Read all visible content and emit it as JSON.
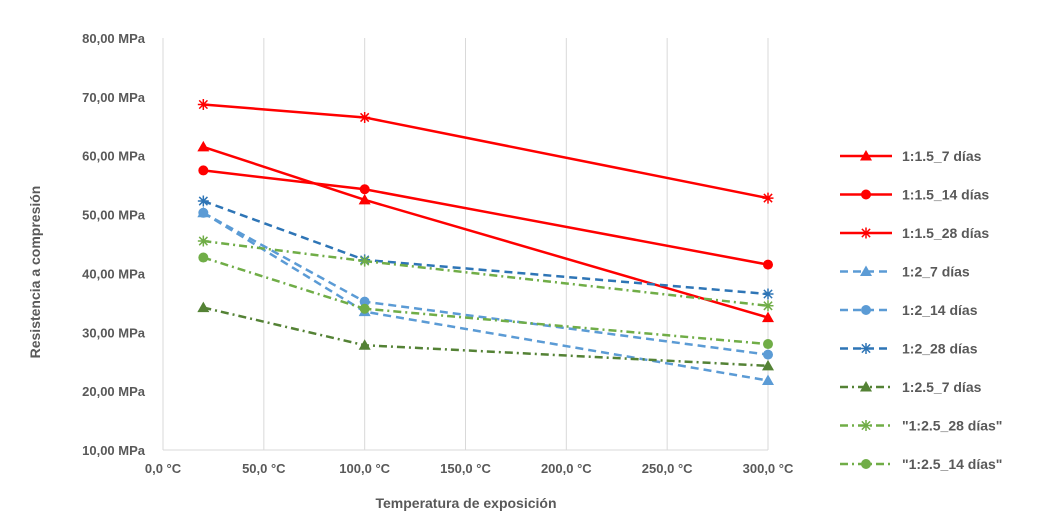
{
  "chart_data": {
    "type": "line",
    "title": "",
    "xlabel": "Temperatura de exposición",
    "ylabel": "Resistencia a compresión",
    "xlim": [
      0,
      300
    ],
    "ylim": [
      10,
      80
    ],
    "x_ticks": [
      0,
      50,
      100,
      150,
      200,
      250,
      300
    ],
    "x_tick_labels": [
      "0,0 °C",
      "50,0 °C",
      "100,0 °C",
      "150,0 °C",
      "200,0 °C",
      "250,0 °C",
      "300,0 °C"
    ],
    "y_ticks": [
      10,
      20,
      30,
      40,
      50,
      60,
      70,
      80
    ],
    "y_tick_labels": [
      "10,00 MPa",
      "20,00 MPa",
      "30,00 MPa",
      "40,00 MPa",
      "50,00 MPa",
      "60,00 MPa",
      "70,00 MPa",
      "80,00 MPa"
    ],
    "grid": "vertical",
    "legend_position": "right",
    "x": [
      20,
      100,
      300
    ],
    "series": [
      {
        "name": "1:1.5_7 días",
        "values": [
          61.5,
          52.5,
          32.5
        ],
        "color": "#ff0000",
        "dash": "solid",
        "marker": "triangle"
      },
      {
        "name": "1:1.5_14 días",
        "values": [
          57.5,
          54.3,
          41.5
        ],
        "color": "#ff0000",
        "dash": "solid",
        "marker": "circle"
      },
      {
        "name": "1:1.5_28 días",
        "values": [
          68.7,
          66.5,
          52.8
        ],
        "color": "#ff0000",
        "dash": "solid",
        "marker": "star"
      },
      {
        "name": "1:2_7 días",
        "values": [
          50.3,
          33.5,
          21.8
        ],
        "color": "#5b9bd5",
        "dash": "dash",
        "marker": "triangle"
      },
      {
        "name": "1:2_14 días",
        "values": [
          50.3,
          35.2,
          26.2
        ],
        "color": "#5b9bd5",
        "dash": "dash",
        "marker": "circle"
      },
      {
        "name": "1:2_28 días",
        "values": [
          52.3,
          42.3,
          36.5
        ],
        "color": "#2e75b6",
        "dash": "dash",
        "marker": "star"
      },
      {
        "name": "1:2.5_7 días",
        "values": [
          34.2,
          27.8,
          24.3
        ],
        "color": "#548235",
        "dash": "dashdot",
        "marker": "triangle"
      },
      {
        "name": "\"1:2.5_28 días\"",
        "values": [
          45.5,
          42.1,
          34.5
        ],
        "color": "#70ad47",
        "dash": "dashdot",
        "marker": "star"
      },
      {
        "name": "\"1:2.5_14 días\"",
        "values": [
          42.7,
          34.0,
          28.0
        ],
        "color": "#70ad47",
        "dash": "dashdot",
        "marker": "circle"
      }
    ]
  }
}
